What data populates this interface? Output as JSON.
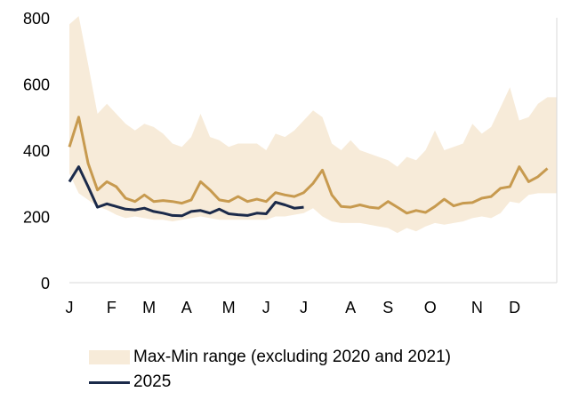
{
  "colors": {
    "band": "#f7ebd9",
    "series_2025": "#1b2a4a",
    "avg": "#c79a4f",
    "axis": "#d9d9d9"
  },
  "legend": {
    "band_label": "Max-Min range (excluding 2020 and 2021)",
    "series_label": "2025"
  },
  "chart_data": {
    "type": "line",
    "x_unit": "week of year",
    "xlim": [
      1,
      53
    ],
    "ylim": [
      0,
      800
    ],
    "y_ticks": [
      0,
      200,
      400,
      600,
      800
    ],
    "x_ticks": [
      {
        "label": "J",
        "x": 1
      },
      {
        "label": "F",
        "x": 5.5
      },
      {
        "label": "M",
        "x": 9.5
      },
      {
        "label": "A",
        "x": 13.5
      },
      {
        "label": "M",
        "x": 18
      },
      {
        "label": "J",
        "x": 22
      },
      {
        "label": "J",
        "x": 26
      },
      {
        "label": "A",
        "x": 31
      },
      {
        "label": "S",
        "x": 35
      },
      {
        "label": "O",
        "x": 39.5
      },
      {
        "label": "N",
        "x": 44.5
      },
      {
        "label": "D",
        "x": 48.5
      }
    ],
    "band": {
      "name": "Max-Min range (excluding 2020 and 2021)",
      "x": [
        1,
        2,
        3,
        4,
        5,
        6,
        7,
        8,
        9,
        10,
        11,
        12,
        13,
        14,
        15,
        16,
        17,
        18,
        19,
        20,
        21,
        22,
        23,
        24,
        25,
        26,
        27,
        28,
        29,
        30,
        31,
        32,
        33,
        34,
        35,
        36,
        37,
        38,
        39,
        40,
        41,
        42,
        43,
        44,
        45,
        46,
        47,
        48,
        49,
        50,
        51,
        52,
        53
      ],
      "max": [
        780,
        805,
        660,
        510,
        540,
        510,
        480,
        460,
        480,
        470,
        450,
        420,
        410,
        440,
        510,
        440,
        430,
        410,
        420,
        420,
        420,
        400,
        450,
        440,
        460,
        490,
        520,
        500,
        420,
        400,
        430,
        400,
        390,
        380,
        370,
        350,
        380,
        370,
        400,
        460,
        400,
        410,
        420,
        480,
        450,
        470,
        530,
        590,
        490,
        500,
        540,
        560,
        560
      ],
      "min": [
        330,
        270,
        250,
        230,
        220,
        205,
        195,
        200,
        195,
        190,
        190,
        185,
        190,
        195,
        200,
        195,
        190,
        190,
        190,
        190,
        190,
        190,
        200,
        200,
        205,
        210,
        225,
        200,
        185,
        180,
        180,
        180,
        175,
        170,
        165,
        150,
        165,
        155,
        170,
        180,
        175,
        180,
        185,
        195,
        200,
        195,
        210,
        245,
        240,
        265,
        270,
        270,
        270
      ]
    },
    "series": [
      {
        "name": "2025",
        "x": [
          1,
          2,
          3,
          4,
          5,
          6,
          7,
          8,
          9,
          10,
          11,
          12,
          13,
          14,
          15,
          16,
          17,
          18,
          19,
          20,
          21,
          22,
          23,
          24,
          25,
          26
        ],
        "values": [
          305,
          350,
          290,
          228,
          238,
          230,
          222,
          220,
          225,
          215,
          210,
          203,
          202,
          215,
          218,
          210,
          222,
          208,
          205,
          203,
          210,
          208,
          243,
          235,
          225,
          228
        ]
      },
      {
        "x": [
          1,
          2,
          3,
          4,
          5,
          6,
          7,
          8,
          9,
          10,
          11,
          12,
          13,
          14,
          15,
          16,
          17,
          18,
          19,
          20,
          21,
          22,
          23,
          24,
          25,
          26,
          27,
          28,
          29,
          30,
          31,
          32,
          33,
          34,
          35,
          36,
          37,
          38,
          39,
          40,
          41,
          42,
          43,
          44,
          45,
          46,
          47,
          48,
          49,
          50,
          51,
          52
        ],
        "values": [
          410,
          500,
          360,
          280,
          305,
          290,
          255,
          245,
          265,
          245,
          248,
          245,
          240,
          250,
          305,
          280,
          250,
          245,
          260,
          245,
          252,
          245,
          272,
          265,
          260,
          272,
          300,
          340,
          265,
          230,
          228,
          235,
          228,
          225,
          245,
          228,
          210,
          218,
          212,
          230,
          252,
          232,
          240,
          242,
          255,
          260,
          285,
          290,
          350,
          305,
          320,
          345
        ]
      }
    ]
  }
}
